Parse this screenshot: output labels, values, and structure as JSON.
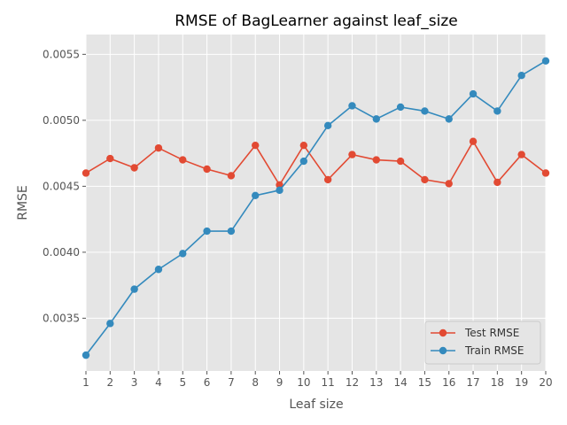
{
  "chart_data": {
    "type": "line",
    "title": "RMSE of BagLearner against leaf_size",
    "xlabel": "Leaf size",
    "ylabel": "RMSE",
    "x": [
      1,
      2,
      3,
      4,
      5,
      6,
      7,
      8,
      9,
      10,
      11,
      12,
      13,
      14,
      15,
      16,
      17,
      18,
      19,
      20
    ],
    "xlim": [
      1,
      20
    ],
    "ylim": [
      0.0031,
      0.00565
    ],
    "yticks": [
      0.0035,
      0.004,
      0.0045,
      0.005,
      0.0055
    ],
    "ytick_labels": [
      "0.0035",
      "0.0040",
      "0.0045",
      "0.0050",
      "0.0055"
    ],
    "grid": true,
    "legend_position": "lower-right",
    "series": [
      {
        "name": "Test RMSE",
        "color": "#e24a33",
        "values": [
          0.0046,
          0.00471,
          0.00464,
          0.00479,
          0.0047,
          0.00463,
          0.00458,
          0.00481,
          0.00451,
          0.00481,
          0.00455,
          0.00474,
          0.0047,
          0.00469,
          0.00455,
          0.00452,
          0.00484,
          0.00453,
          0.00474,
          0.0046
        ]
      },
      {
        "name": "Train RMSE",
        "color": "#348abd",
        "values": [
          0.00322,
          0.00346,
          0.00372,
          0.00387,
          0.00399,
          0.00416,
          0.00416,
          0.00443,
          0.00447,
          0.00469,
          0.00496,
          0.00511,
          0.00501,
          0.0051,
          0.00507,
          0.00501,
          0.0052,
          0.00507,
          0.00534,
          0.00545
        ]
      }
    ]
  }
}
